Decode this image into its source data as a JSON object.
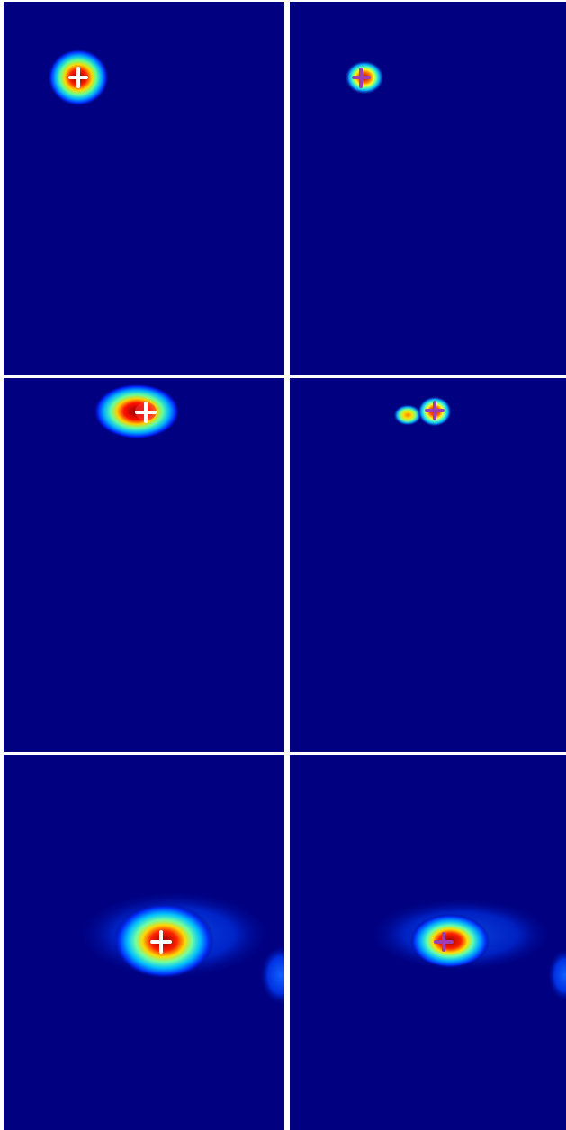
{
  "figure": {
    "background": "#000080",
    "divider_color": "#ffffff",
    "colormap": "jet",
    "rows": 3,
    "cols": 2
  },
  "panels": [
    {
      "id": "r1c1",
      "marker_color": "#ffffff",
      "marker": "plus-icon"
    },
    {
      "id": "r1c2",
      "marker_color": "#9b3fb5",
      "marker": "plus-icon"
    },
    {
      "id": "r2c1",
      "marker_color": "#ffffff",
      "marker": "plus-icon"
    },
    {
      "id": "r2c2",
      "marker_color": "#9b3fb5",
      "marker": "plus-icon"
    },
    {
      "id": "r3c1",
      "marker_color": "#ffffff",
      "marker": "plus-icon"
    },
    {
      "id": "r3c2",
      "marker_color": "#9b3fb5",
      "marker": "plus-icon"
    }
  ]
}
